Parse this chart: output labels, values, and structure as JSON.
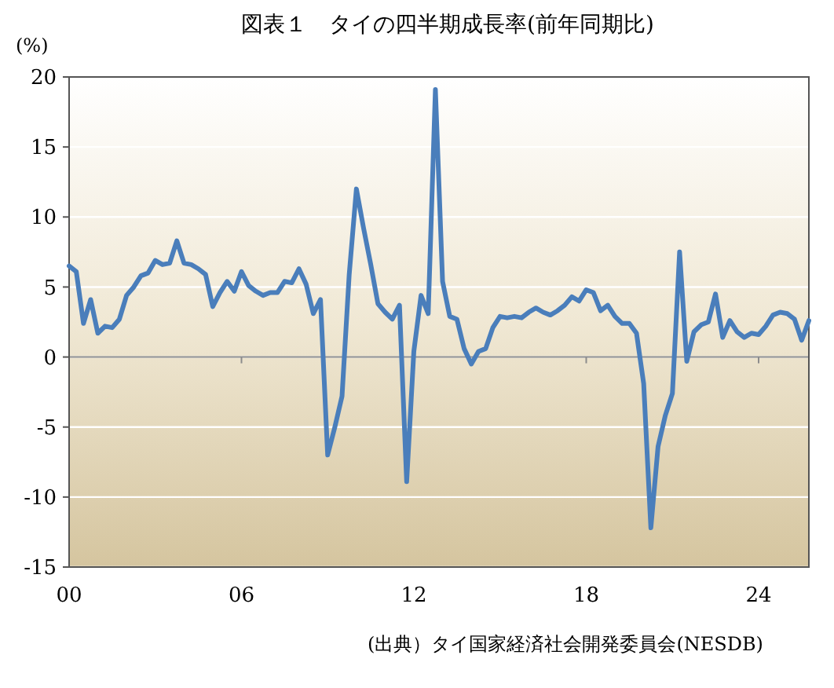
{
  "chart_data": {
    "type": "line",
    "title": "図表１　タイの四半期成長率(前年同期比)",
    "ylabel": "(%)",
    "annotations": [
      "(出典）タイ国家経済社会開発委員会(NESDB)"
    ],
    "xlim": [
      2000,
      2025.75
    ],
    "xticks": [
      {
        "value": 2000,
        "label": "00"
      },
      {
        "value": 2006,
        "label": "06"
      },
      {
        "value": 2012,
        "label": "12"
      },
      {
        "value": 2018,
        "label": "18"
      },
      {
        "value": 2024,
        "label": "24"
      }
    ],
    "ylim": [
      -15,
      20
    ],
    "yticks": [
      -15,
      -10,
      -5,
      0,
      5,
      10,
      15,
      20
    ],
    "grid": "y",
    "marker": "none",
    "line_style": "solid",
    "x": [
      2000,
      2000.25,
      2000.5,
      2000.75,
      2001,
      2001.25,
      2001.5,
      2001.75,
      2002,
      2002.25,
      2002.5,
      2002.75,
      2003,
      2003.25,
      2003.5,
      2003.75,
      2004,
      2004.25,
      2004.5,
      2004.75,
      2005,
      2005.25,
      2005.5,
      2005.75,
      2006,
      2006.25,
      2006.5,
      2006.75,
      2007,
      2007.25,
      2007.5,
      2007.75,
      2008,
      2008.25,
      2008.5,
      2008.75,
      2009,
      2009.25,
      2009.5,
      2009.75,
      2010,
      2010.25,
      2010.5,
      2010.75,
      2011,
      2011.25,
      2011.5,
      2011.75,
      2012,
      2012.25,
      2012.5,
      2012.75,
      2013,
      2013.25,
      2013.5,
      2013.75,
      2014,
      2014.25,
      2014.5,
      2014.75,
      2015,
      2015.25,
      2015.5,
      2015.75,
      2016,
      2016.25,
      2016.5,
      2016.75,
      2017,
      2017.25,
      2017.5,
      2017.75,
      2018,
      2018.25,
      2018.5,
      2018.75,
      2019,
      2019.25,
      2019.5,
      2019.75,
      2020,
      2020.25,
      2020.5,
      2020.75,
      2021,
      2021.25,
      2021.5,
      2021.75,
      2022,
      2022.25,
      2022.5,
      2022.75,
      2023,
      2023.25,
      2023.5,
      2023.75,
      2024,
      2024.25,
      2024.5,
      2024.75,
      2025,
      2025.25,
      2025.5,
      2025.75
    ],
    "series": [
      {
        "color": "#4a7ebb",
        "values": [
          6.5,
          6.1,
          2.4,
          4.1,
          1.7,
          2.2,
          2.1,
          2.7,
          4.4,
          5.0,
          5.8,
          6.0,
          6.9,
          6.6,
          6.7,
          8.3,
          6.7,
          6.6,
          6.3,
          5.9,
          3.6,
          4.6,
          5.4,
          4.7,
          6.1,
          5.1,
          4.7,
          4.4,
          4.6,
          4.6,
          5.4,
          5.3,
          6.3,
          5.2,
          3.1,
          4.1,
          -7.0,
          -5.0,
          -2.8,
          5.9,
          12.0,
          9.2,
          6.6,
          3.8,
          3.2,
          2.7,
          3.7,
          -8.9,
          0.4,
          4.4,
          3.1,
          19.1,
          5.4,
          2.9,
          2.7,
          0.6,
          -0.5,
          0.4,
          0.6,
          2.1,
          2.9,
          2.8,
          2.9,
          2.8,
          3.2,
          3.5,
          3.2,
          3.0,
          3.3,
          3.7,
          4.3,
          4.0,
          4.8,
          4.6,
          3.3,
          3.7,
          2.9,
          2.4,
          2.4,
          1.7,
          -1.9,
          -12.2,
          -6.4,
          -4.2,
          -2.6,
          7.5,
          -0.3,
          1.8,
          2.3,
          2.5,
          4.5,
          1.4,
          2.6,
          1.8,
          1.4,
          1.7,
          1.6,
          2.2,
          3.0,
          3.2,
          3.1,
          2.7,
          1.2,
          2.6
        ]
      }
    ]
  }
}
